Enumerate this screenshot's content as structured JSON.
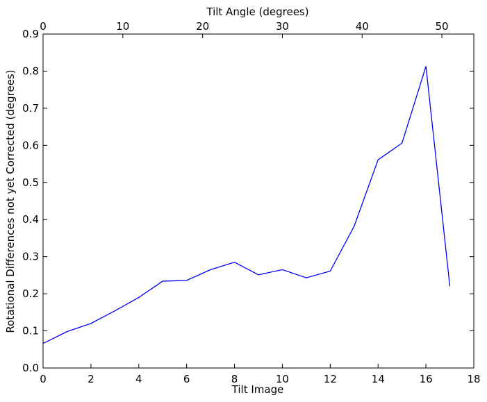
{
  "chart_data": {
    "type": "line",
    "xlabel": "Tilt Image",
    "ylabel": "Rotational Differences not yet Corrected (degrees)",
    "x2label": "Tilt Angle (degrees)",
    "xlim": [
      0,
      18
    ],
    "ylim": [
      0,
      0.9
    ],
    "x2lim": [
      0,
      54
    ],
    "xticks": [
      0,
      2,
      4,
      6,
      8,
      10,
      12,
      14,
      16,
      18
    ],
    "yticks": [
      "0.0",
      "0.1",
      "0.2",
      "0.3",
      "0.4",
      "0.5",
      "0.6",
      "0.7",
      "0.8",
      "0.9"
    ],
    "x2ticks": [
      0,
      10,
      20,
      30,
      40,
      50
    ],
    "grid": false,
    "line_color": "#0000ff",
    "series": [
      {
        "x": [
          0,
          1,
          2,
          3,
          4,
          5,
          6,
          7,
          8,
          9,
          10,
          11,
          12,
          13,
          14,
          15,
          16,
          17
        ],
        "y": [
          0.066,
          0.098,
          0.12,
          0.154,
          0.19,
          0.234,
          0.236,
          0.265,
          0.285,
          0.251,
          0.265,
          0.243,
          0.261,
          0.382,
          0.561,
          0.606,
          0.813,
          0.22
        ]
      }
    ]
  }
}
